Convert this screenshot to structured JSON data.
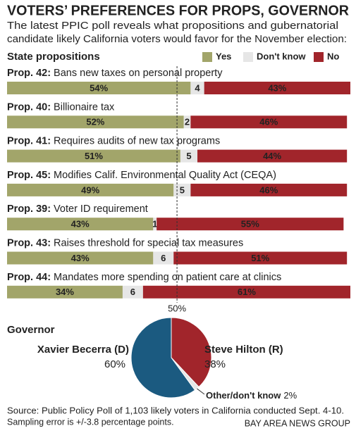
{
  "header": {
    "title": "VOTERS’ PREFERENCES FOR PROPS, GOVERNOR",
    "subtitle": [
      "The latest PPIC poll reveals what propositions and gubernatorial",
      "candidate likely California voters would favor for the November election:"
    ]
  },
  "chart_data": [
    {
      "type": "bar",
      "orientation": "horizontal",
      "stacked": true,
      "title": "State propositions",
      "categories": [
        "Prop. 42:",
        "Prop. 40:",
        "Prop. 41:",
        "Prop. 45:",
        "Prop. 39:",
        "Prop. 43:",
        "Prop.  44:"
      ],
      "descriptions": [
        "Bans new taxes on personal property",
        "Billionaire tax",
        "Requires audits of new tax programs",
        "Modifies Calif. Environmental Quality Act (CEQA)",
        "Voter ID requirement",
        "Raises threshold for special tax measures",
        "Mandates more spending on patient care at clinics"
      ],
      "series": [
        {
          "name": "Yes",
          "color": "#a2a56a",
          "values": [
            54,
            52,
            51,
            49,
            43,
            43,
            34
          ],
          "value_labels": [
            "54%",
            "52%",
            "51%",
            "49%",
            "43%",
            "43%",
            "34%"
          ]
        },
        {
          "name": "Don't know",
          "color": "#e6e6e6",
          "values": [
            4,
            2,
            5,
            5,
            1,
            6,
            6
          ]
        },
        {
          "name": "No",
          "color": "#a1252b",
          "values": [
            43,
            46,
            44,
            46,
            55,
            51,
            61
          ],
          "value_labels": [
            "43%",
            "46%",
            "44%",
            "46%",
            "55%",
            "51%",
            "61%"
          ]
        }
      ],
      "xlim": [
        0,
        101
      ],
      "reference_line": {
        "value": 50,
        "label": "50%"
      },
      "legend": "top-right"
    },
    {
      "type": "pie",
      "title": "Governor",
      "categories": [
        "Steve Hilton (R)",
        "Other/don't know",
        "Xavier Becerra (D)"
      ],
      "values": [
        38,
        2,
        60
      ],
      "value_labels": [
        "38%",
        "2%",
        "60%"
      ],
      "colors": [
        "#a1252b",
        "#e6e6e6",
        "#1b5a80"
      ]
    }
  ],
  "footer": {
    "source": [
      "Source: Public Policy Poll of 1,103 likely voters in California conducted Sept. 4-10.",
      "Sampling error is +/-3.8 percentage points."
    ],
    "credit": "BAY AREA NEWS GROUP"
  }
}
